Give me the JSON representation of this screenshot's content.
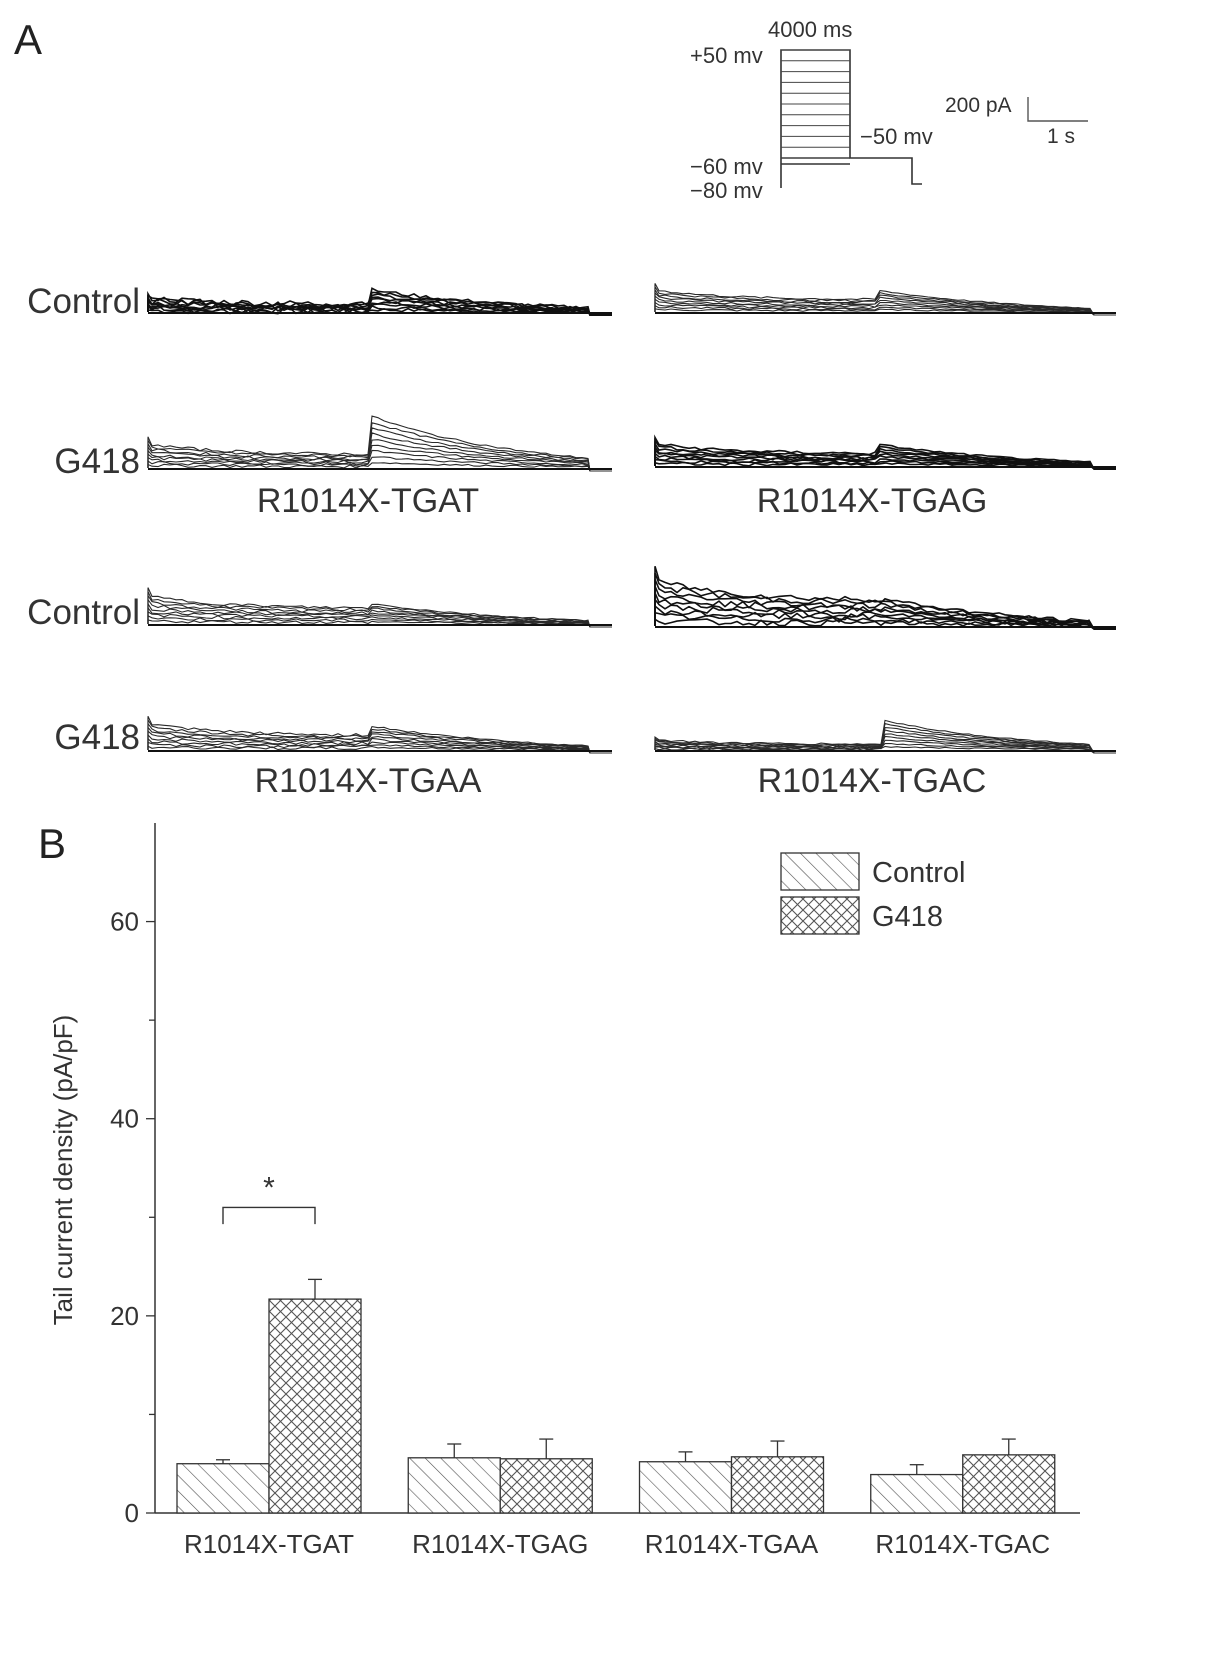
{
  "panel_a": {
    "letter": "A",
    "protocol": {
      "duration_label": "4000 ms",
      "step_top_label": "+50 mv",
      "step_bottom_label": "−60 mv",
      "holding_label": "−80 mv",
      "tail_label": "−50 mv"
    },
    "scale_bar": {
      "current_label": "200 pA",
      "time_label": "1 s"
    },
    "row_labels": {
      "control": "Control",
      "g418": "G418"
    },
    "variants": [
      {
        "label": "R1014X-TGAT"
      },
      {
        "label": "R1014X-TGAG"
      },
      {
        "label": "R1014X-TGAA"
      },
      {
        "label": "R1014X-TGAC"
      }
    ]
  },
  "panel_b": {
    "letter": "B"
  },
  "chart_data": {
    "type": "bar",
    "ylabel": "Tail current density (pA/pF)",
    "ylim": [
      0,
      70
    ],
    "yticks": [
      0,
      20,
      40,
      60
    ],
    "categories": [
      "R1014X-TGAT",
      "R1014X-TGAG",
      "R1014X-TGAA",
      "R1014X-TGAC"
    ],
    "series": [
      {
        "name": "Control",
        "pattern": "diagonal-hatch",
        "values": [
          5.0,
          5.6,
          5.2,
          3.9
        ],
        "errors": [
          0.4,
          1.4,
          1.0,
          1.0
        ]
      },
      {
        "name": "G418",
        "pattern": "cross-hatch",
        "values": [
          21.7,
          5.5,
          5.7,
          5.9
        ],
        "errors": [
          2.0,
          2.0,
          1.6,
          1.6
        ]
      }
    ],
    "significance": [
      {
        "category": "R1014X-TGAT",
        "label": "*"
      }
    ],
    "legend_position": "top-right",
    "grid": false
  }
}
